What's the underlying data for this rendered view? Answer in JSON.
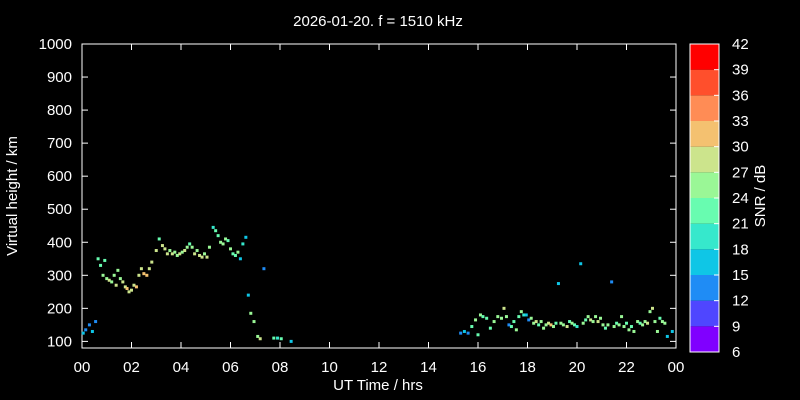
{
  "chart_data": {
    "type": "scatter",
    "title": "2026-01-20. f = 1510 kHz",
    "xlabel": "UT Time / hrs",
    "ylabel": "Virtual height / km",
    "colorbar_label": "SNR / dB",
    "xlim": [
      0,
      24
    ],
    "ylim": [
      80,
      1000
    ],
    "x_ticks": [
      "00",
      "02",
      "04",
      "06",
      "08",
      "10",
      "12",
      "14",
      "16",
      "18",
      "20",
      "22",
      "00"
    ],
    "y_ticks": [
      100,
      200,
      300,
      400,
      500,
      600,
      700,
      800,
      900,
      1000
    ],
    "colorbar": {
      "range": [
        6,
        42
      ],
      "ticks": [
        6,
        9,
        12,
        15,
        18,
        21,
        24,
        27,
        30,
        33,
        36,
        39,
        42
      ],
      "colors": [
        "#8000ff",
        "#4f46ff",
        "#1f8cf5",
        "#0fc6e6",
        "#36e8cc",
        "#68fcb0",
        "#9af796",
        "#cce48c",
        "#f4c170",
        "#ff8c55",
        "#ff4f2c",
        "#ff0000"
      ]
    },
    "grid": false,
    "points": [
      [
        0.05,
        125,
        15
      ],
      [
        0.15,
        135,
        12
      ],
      [
        0.3,
        150,
        12
      ],
      [
        0.42,
        130,
        15
      ],
      [
        0.55,
        160,
        12
      ],
      [
        0.65,
        350,
        21
      ],
      [
        0.75,
        330,
        21
      ],
      [
        0.85,
        300,
        24
      ],
      [
        0.92,
        345,
        21
      ],
      [
        1.0,
        290,
        24
      ],
      [
        1.1,
        285,
        27
      ],
      [
        1.2,
        280,
        24
      ],
      [
        1.3,
        300,
        24
      ],
      [
        1.38,
        270,
        27
      ],
      [
        1.45,
        315,
        24
      ],
      [
        1.55,
        290,
        24
      ],
      [
        1.65,
        280,
        27
      ],
      [
        1.75,
        265,
        27
      ],
      [
        1.82,
        260,
        30
      ],
      [
        1.9,
        250,
        27
      ],
      [
        2.0,
        255,
        27
      ],
      [
        2.1,
        270,
        27
      ],
      [
        2.2,
        265,
        30
      ],
      [
        2.3,
        300,
        27
      ],
      [
        2.4,
        320,
        27
      ],
      [
        2.5,
        305,
        30
      ],
      [
        2.62,
        300,
        30
      ],
      [
        2.72,
        320,
        27
      ],
      [
        2.82,
        340,
        27
      ],
      [
        3.0,
        375,
        27
      ],
      [
        3.12,
        410,
        21
      ],
      [
        3.25,
        390,
        27
      ],
      [
        3.35,
        380,
        27
      ],
      [
        3.45,
        365,
        27
      ],
      [
        3.55,
        375,
        24
      ],
      [
        3.65,
        365,
        27
      ],
      [
        3.75,
        370,
        24
      ],
      [
        3.85,
        360,
        24
      ],
      [
        3.95,
        365,
        27
      ],
      [
        4.05,
        370,
        24
      ],
      [
        4.15,
        375,
        27
      ],
      [
        4.25,
        385,
        24
      ],
      [
        4.35,
        395,
        21
      ],
      [
        4.45,
        385,
        24
      ],
      [
        4.55,
        365,
        27
      ],
      [
        4.65,
        375,
        24
      ],
      [
        4.75,
        360,
        27
      ],
      [
        4.85,
        355,
        27
      ],
      [
        4.95,
        365,
        24
      ],
      [
        5.05,
        355,
        27
      ],
      [
        5.15,
        385,
        24
      ],
      [
        5.3,
        445,
        18
      ],
      [
        5.4,
        435,
        21
      ],
      [
        5.5,
        420,
        21
      ],
      [
        5.6,
        400,
        24
      ],
      [
        5.7,
        395,
        24
      ],
      [
        5.8,
        410,
        24
      ],
      [
        5.9,
        405,
        21
      ],
      [
        6.0,
        380,
        24
      ],
      [
        6.1,
        365,
        21
      ],
      [
        6.2,
        360,
        21
      ],
      [
        6.3,
        370,
        24
      ],
      [
        6.4,
        350,
        15
      ],
      [
        6.5,
        395,
        18
      ],
      [
        6.62,
        415,
        15
      ],
      [
        6.72,
        240,
        15
      ],
      [
        6.82,
        185,
        24
      ],
      [
        6.95,
        160,
        24
      ],
      [
        7.1,
        115,
        24
      ],
      [
        7.2,
        108,
        27
      ],
      [
        7.35,
        320,
        12
      ],
      [
        7.75,
        110,
        21
      ],
      [
        7.9,
        110,
        18
      ],
      [
        8.05,
        108,
        21
      ],
      [
        8.45,
        100,
        15
      ],
      [
        15.3,
        125,
        12
      ],
      [
        15.45,
        130,
        15
      ],
      [
        15.6,
        125,
        12
      ],
      [
        15.75,
        145,
        21
      ],
      [
        15.9,
        165,
        24
      ],
      [
        16.0,
        120,
        21
      ],
      [
        16.1,
        180,
        24
      ],
      [
        16.2,
        175,
        21
      ],
      [
        16.35,
        170,
        21
      ],
      [
        16.5,
        140,
        21
      ],
      [
        16.65,
        160,
        24
      ],
      [
        16.8,
        175,
        24
      ],
      [
        16.95,
        170,
        24
      ],
      [
        17.05,
        200,
        27
      ],
      [
        17.15,
        175,
        24
      ],
      [
        17.25,
        150,
        12
      ],
      [
        17.35,
        145,
        21
      ],
      [
        17.45,
        160,
        21
      ],
      [
        17.55,
        135,
        24
      ],
      [
        17.65,
        175,
        21
      ],
      [
        17.75,
        190,
        24
      ],
      [
        17.85,
        180,
        18
      ],
      [
        17.95,
        180,
        15
      ],
      [
        18.05,
        165,
        12
      ],
      [
        18.15,
        170,
        24
      ],
      [
        18.25,
        155,
        24
      ],
      [
        18.35,
        160,
        27
      ],
      [
        18.45,
        150,
        21
      ],
      [
        18.55,
        160,
        24
      ],
      [
        18.65,
        140,
        24
      ],
      [
        18.75,
        150,
        24
      ],
      [
        18.85,
        155,
        27
      ],
      [
        18.95,
        150,
        30
      ],
      [
        19.05,
        145,
        24
      ],
      [
        19.15,
        155,
        21
      ],
      [
        19.25,
        275,
        15
      ],
      [
        19.35,
        155,
        24
      ],
      [
        19.45,
        150,
        24
      ],
      [
        19.6,
        145,
        27
      ],
      [
        19.7,
        160,
        21
      ],
      [
        19.8,
        155,
        24
      ],
      [
        19.9,
        150,
        21
      ],
      [
        20.0,
        145,
        18
      ],
      [
        20.15,
        335,
        15
      ],
      [
        20.25,
        155,
        24
      ],
      [
        20.35,
        165,
        21
      ],
      [
        20.45,
        175,
        24
      ],
      [
        20.55,
        165,
        27
      ],
      [
        20.65,
        160,
        24
      ],
      [
        20.75,
        175,
        24
      ],
      [
        20.85,
        160,
        27
      ],
      [
        20.95,
        170,
        24
      ],
      [
        21.05,
        150,
        24
      ],
      [
        21.15,
        140,
        21
      ],
      [
        21.25,
        150,
        24
      ],
      [
        21.4,
        280,
        12
      ],
      [
        21.5,
        145,
        24
      ],
      [
        21.6,
        155,
        21
      ],
      [
        21.7,
        150,
        24
      ],
      [
        21.8,
        175,
        24
      ],
      [
        21.9,
        145,
        24
      ],
      [
        22.0,
        155,
        21
      ],
      [
        22.1,
        135,
        24
      ],
      [
        22.2,
        145,
        21
      ],
      [
        22.3,
        130,
        24
      ],
      [
        22.45,
        160,
        24
      ],
      [
        22.55,
        155,
        21
      ],
      [
        22.65,
        150,
        24
      ],
      [
        22.75,
        160,
        24
      ],
      [
        22.85,
        155,
        27
      ],
      [
        22.95,
        190,
        24
      ],
      [
        23.05,
        200,
        27
      ],
      [
        23.15,
        160,
        24
      ],
      [
        23.25,
        130,
        24
      ],
      [
        23.35,
        170,
        21
      ],
      [
        23.45,
        160,
        24
      ],
      [
        23.55,
        155,
        24
      ],
      [
        23.65,
        115,
        15
      ],
      [
        23.85,
        130,
        15
      ]
    ]
  }
}
